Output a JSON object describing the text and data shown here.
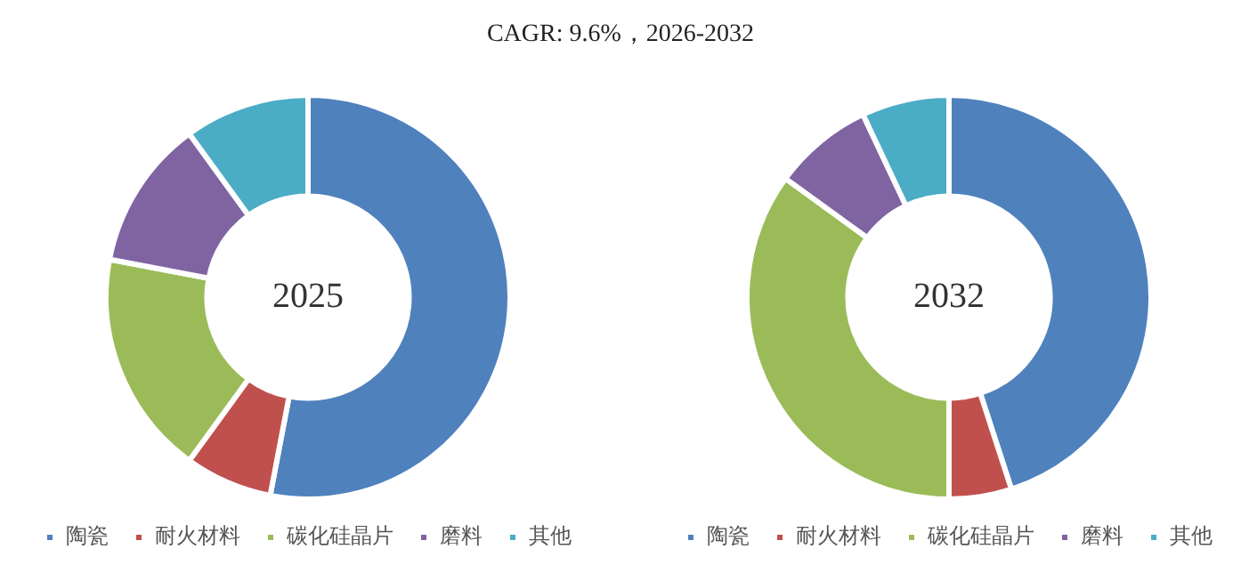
{
  "chart_data": [
    {
      "type": "donut",
      "title": "2025",
      "annotations": [
        "CAGR:  9.6%，2026-2032"
      ],
      "categories": [
        "陶瓷",
        "耐火材料",
        "碳化硅晶片",
        "磨料",
        "其他"
      ],
      "values": [
        53,
        7,
        18,
        12,
        10
      ],
      "colors": [
        "#4f81bd",
        "#c0504d",
        "#9bbb59",
        "#8064a2",
        "#4bacc6"
      ],
      "legend": "bottom"
    },
    {
      "type": "donut",
      "title": "2032",
      "categories": [
        "陶瓷",
        "耐火材料",
        "碳化硅晶片",
        "磨料",
        "其他"
      ],
      "values": [
        45,
        5,
        35,
        8,
        7
      ],
      "colors": [
        "#4f81bd",
        "#c0504d",
        "#9bbb59",
        "#8064a2",
        "#4bacc6"
      ],
      "legend": "bottom"
    }
  ]
}
